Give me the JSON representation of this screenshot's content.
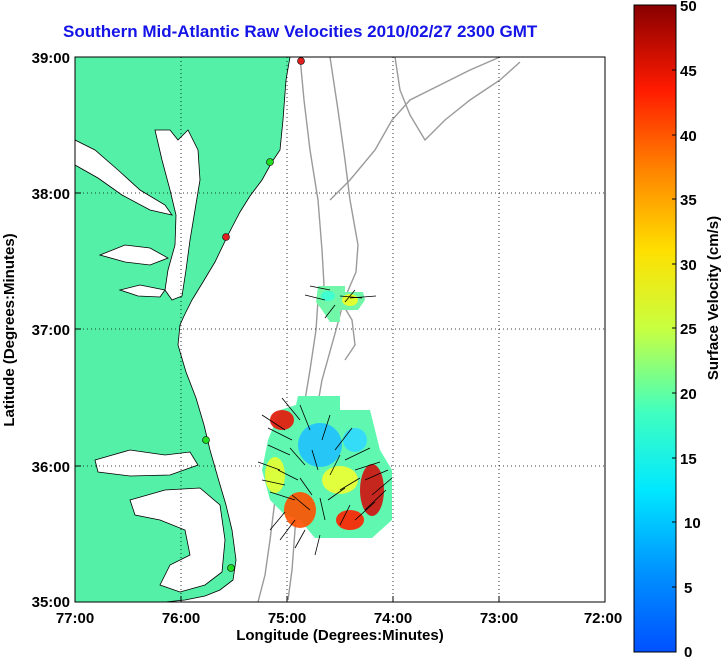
{
  "title": "Southern Mid-Atlantic Raw Velocities 2010/02/27 2300 GMT",
  "x_axis": {
    "label": "Longitude (Degrees:Minutes)",
    "ticks": [
      "77:00",
      "76:00",
      "75:00",
      "74:00",
      "73:00",
      "72:00"
    ]
  },
  "y_axis": {
    "label": "Latitude (Degrees:Minutes)",
    "ticks": [
      "39:00",
      "38:00",
      "37:00",
      "36:00",
      "35:00"
    ]
  },
  "colorbar": {
    "label": "Surface Velocity (cm/s)",
    "ticks": [
      "50",
      "45",
      "40",
      "35",
      "30",
      "25",
      "20",
      "15",
      "10",
      "5",
      "0"
    ],
    "min": 0,
    "max": 50,
    "colormap": "jet"
  },
  "colors": {
    "title": "#1414e6",
    "land": "#55f0a8",
    "coastline": "#000000",
    "bathymetry": "#9a9a9a",
    "station_green": "#22dd22",
    "station_red": "#e02020"
  },
  "grid": "dotted",
  "stations": [
    {
      "status": "red"
    },
    {
      "status": "green"
    },
    {
      "status": "red"
    },
    {
      "status": "green"
    },
    {
      "status": "green"
    }
  ]
}
